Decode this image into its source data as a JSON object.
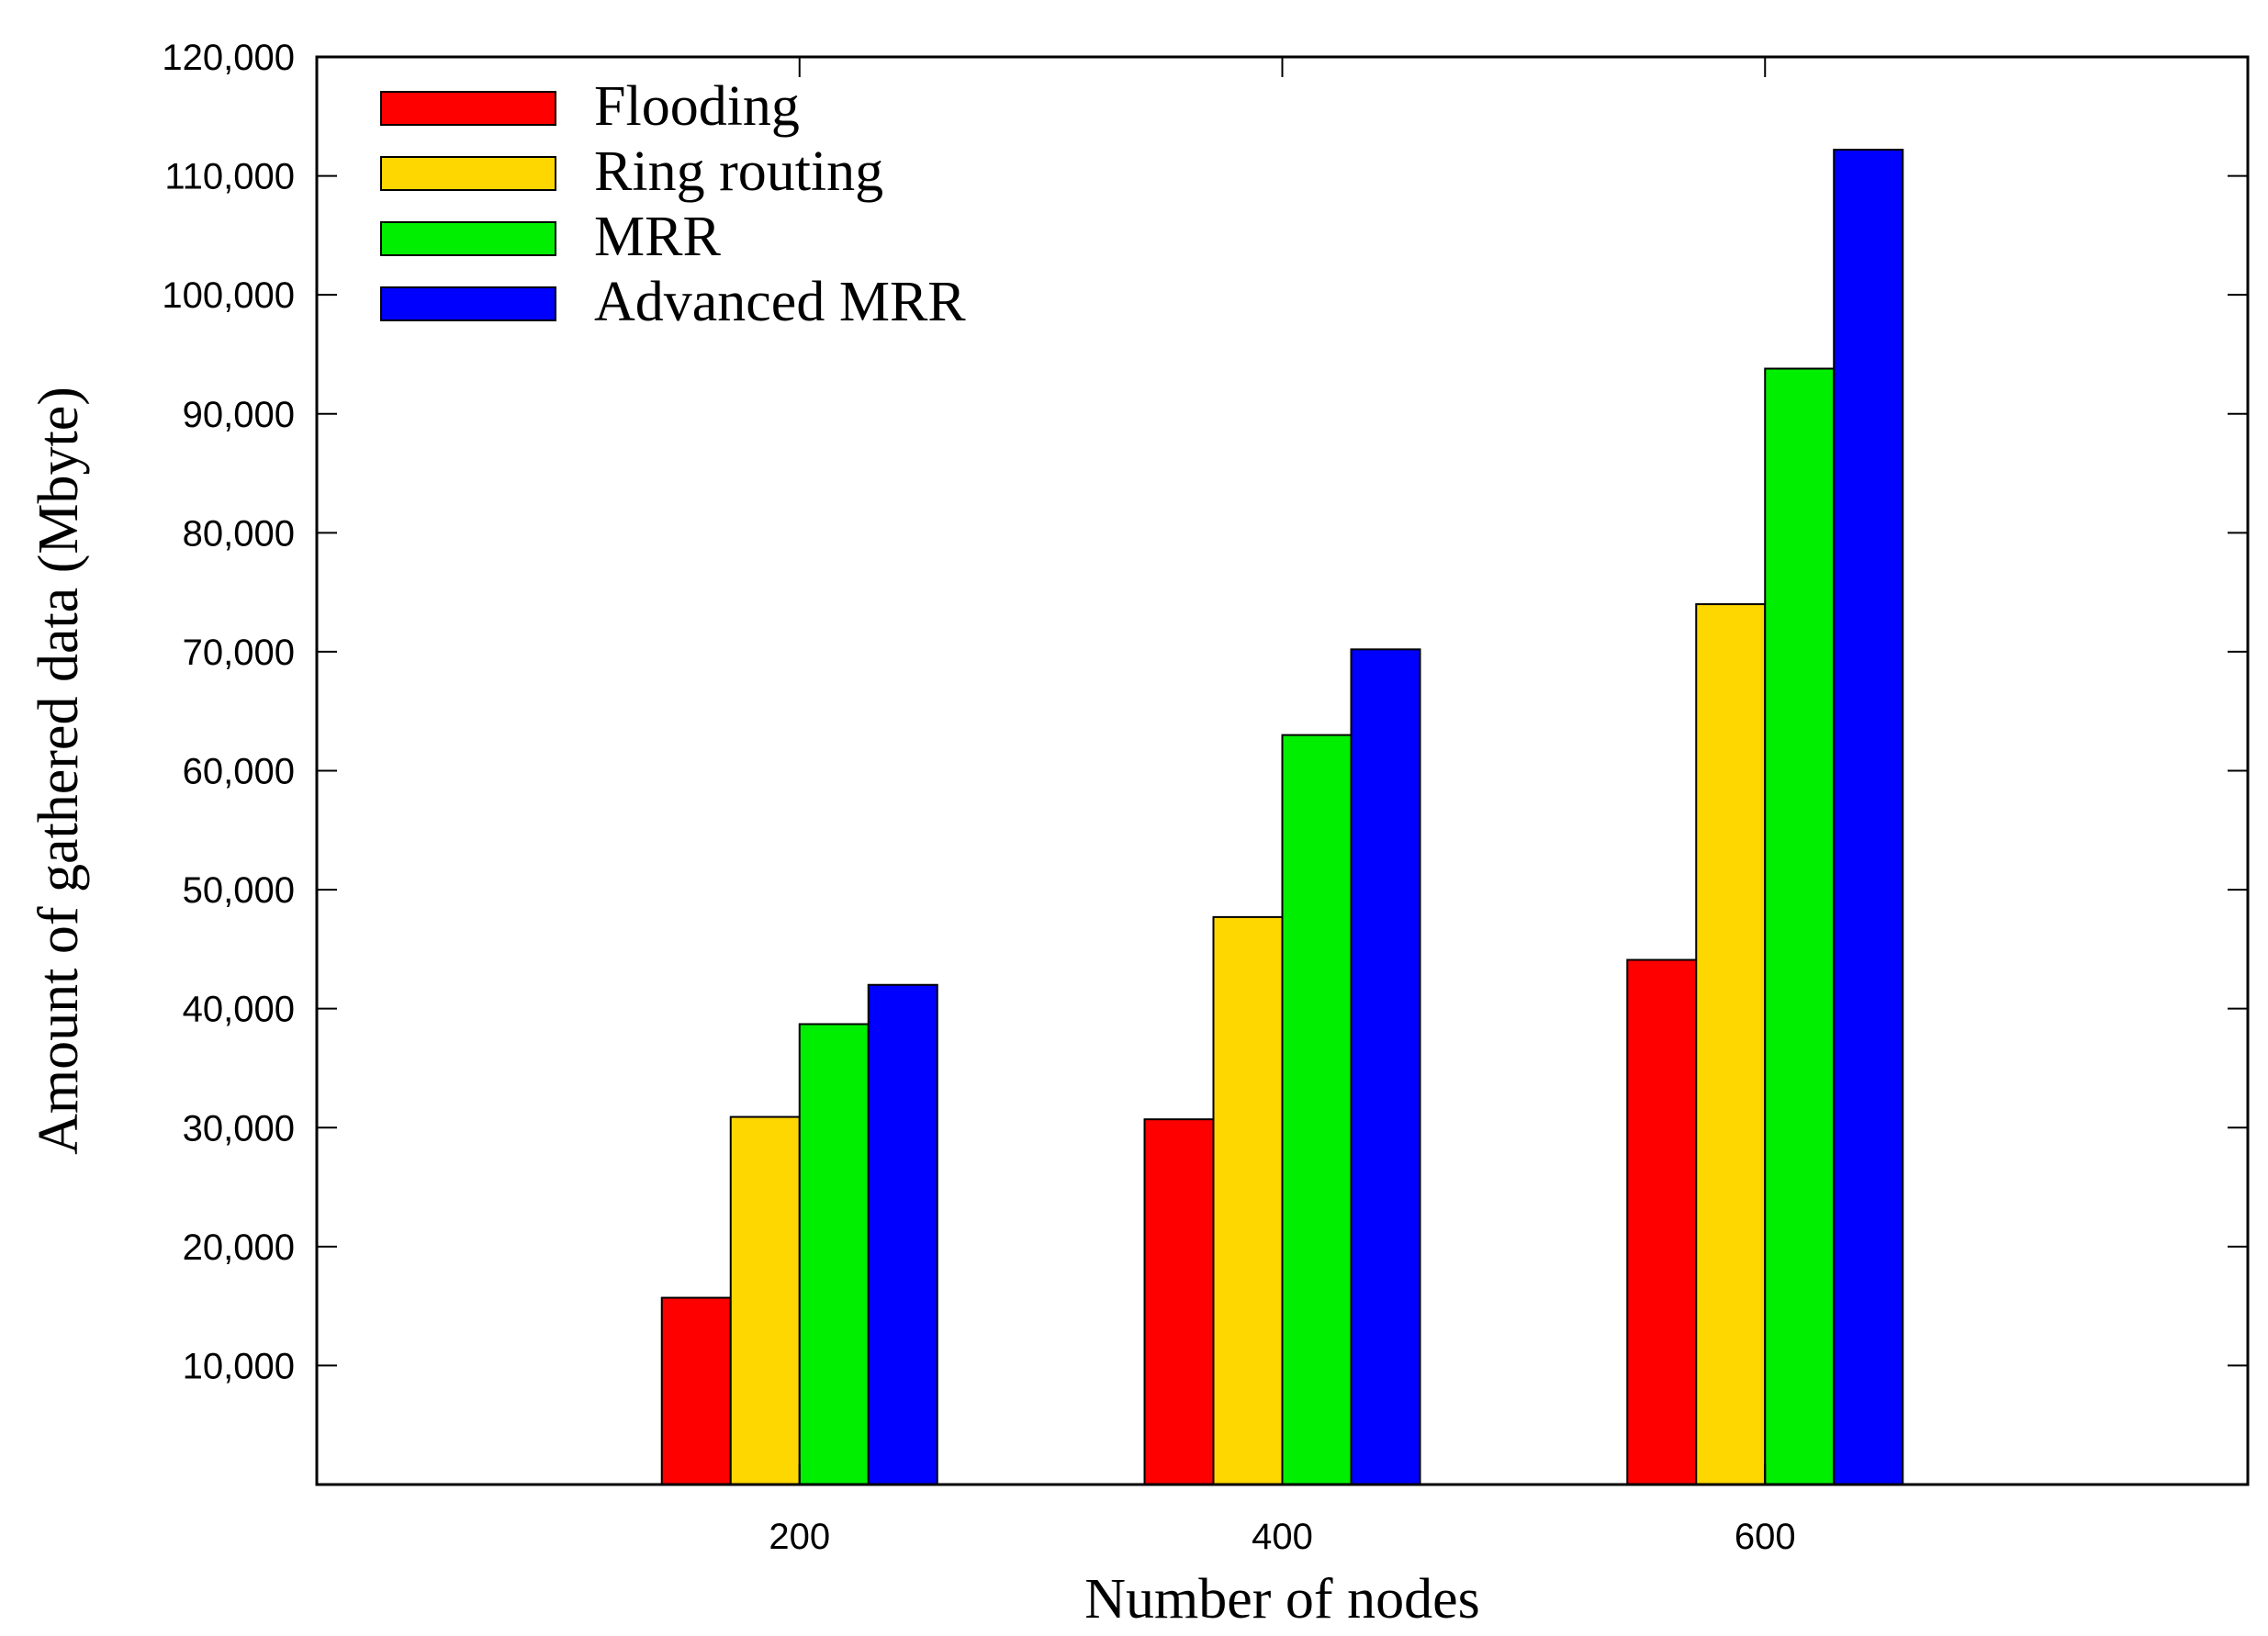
{
  "chart_data": {
    "type": "bar",
    "title": "",
    "xlabel": "Number of nodes",
    "ylabel": "Amount of gathered data (Mbyte)",
    "categories": [
      "200",
      "400",
      "600"
    ],
    "ylim": [
      0,
      120000
    ],
    "yticks": [
      10000,
      20000,
      30000,
      40000,
      50000,
      60000,
      70000,
      80000,
      90000,
      100000,
      110000,
      120000
    ],
    "ytick_labels": [
      "10,000",
      "20,000",
      "30,000",
      "40,000",
      "50,000",
      "60,000",
      "70,000",
      "80,000",
      "90,000",
      "100,000",
      "110,000",
      "120,000"
    ],
    "series": [
      {
        "name": "Flooding",
        "color": "#ff0000",
        "values": [
          15700,
          30700,
          44100
        ]
      },
      {
        "name": "Ring routing",
        "color": "#ffd700",
        "values": [
          30900,
          47700,
          74000
        ]
      },
      {
        "name": "MRR",
        "color": "#00ee00",
        "values": [
          38700,
          63000,
          93800
        ]
      },
      {
        "name": "Advanced MRR",
        "color": "#0000ff",
        "values": [
          42000,
          70200,
          112200
        ]
      }
    ],
    "legend_position": "top-left",
    "grid": false
  }
}
